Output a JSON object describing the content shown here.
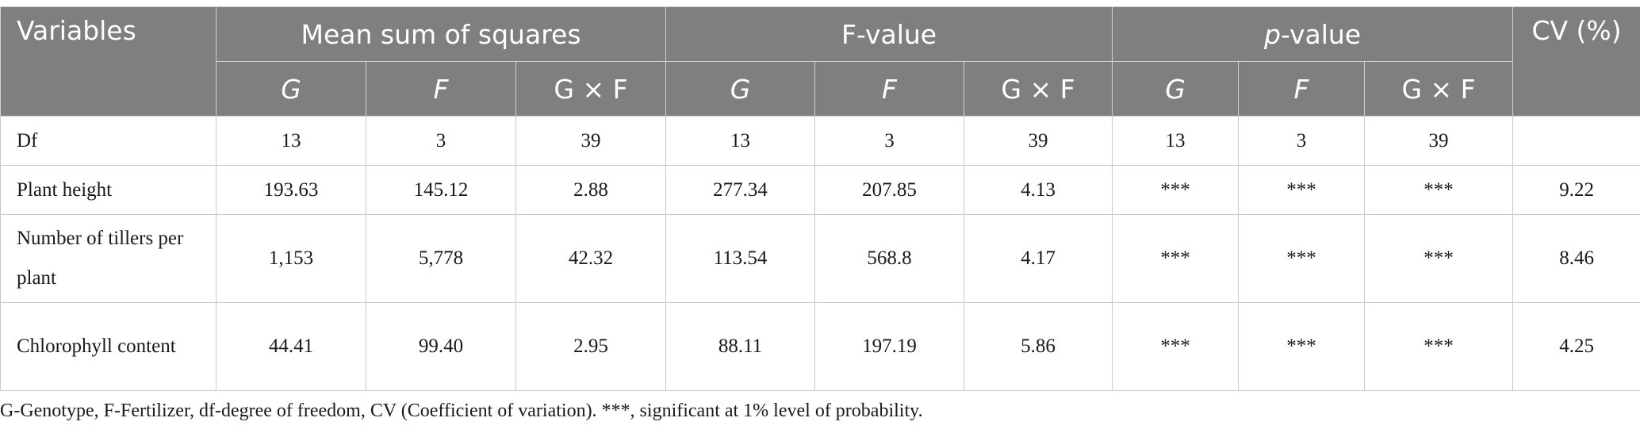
{
  "table": {
    "header_group": {
      "variables": "Variables",
      "mss": "Mean sum of squares",
      "fvalue": "F-value",
      "pvalue_prefix": "p",
      "pvalue_suffix": "-value",
      "cv": "CV (%)"
    },
    "sub_headers": [
      "G",
      "F",
      "G × F",
      "G",
      "F",
      "G × F",
      "G",
      "F",
      "G × F"
    ],
    "rows": [
      {
        "label": "Df",
        "cells": [
          "13",
          "3",
          "39",
          "13",
          "3",
          "39",
          "13",
          "3",
          "39",
          ""
        ]
      },
      {
        "label": "Plant height",
        "cells": [
          "193.63",
          "145.12",
          "2.88",
          "277.34",
          "207.85",
          "4.13",
          "***",
          "***",
          "***",
          "9.22"
        ]
      },
      {
        "label": "Number of tillers per plant",
        "cells": [
          "1,153",
          "5,778",
          "42.32",
          "113.54",
          "568.8",
          "4.17",
          "***",
          "***",
          "***",
          "8.46"
        ]
      },
      {
        "label": "Chlorophyll content",
        "cells": [
          "44.41",
          "99.40",
          "2.95",
          "88.11",
          "197.19",
          "5.86",
          "***",
          "***",
          "***",
          "4.25"
        ]
      }
    ]
  },
  "footnote": "G-Genotype, F-Fertilizer, df-degree of freedom, CV (Coefficient of variation). ***, significant at 1% level of probability.",
  "colors": {
    "header_bg": "#7f7f7e",
    "header_text": "#ffffff",
    "grid": "#c9c9c9"
  }
}
